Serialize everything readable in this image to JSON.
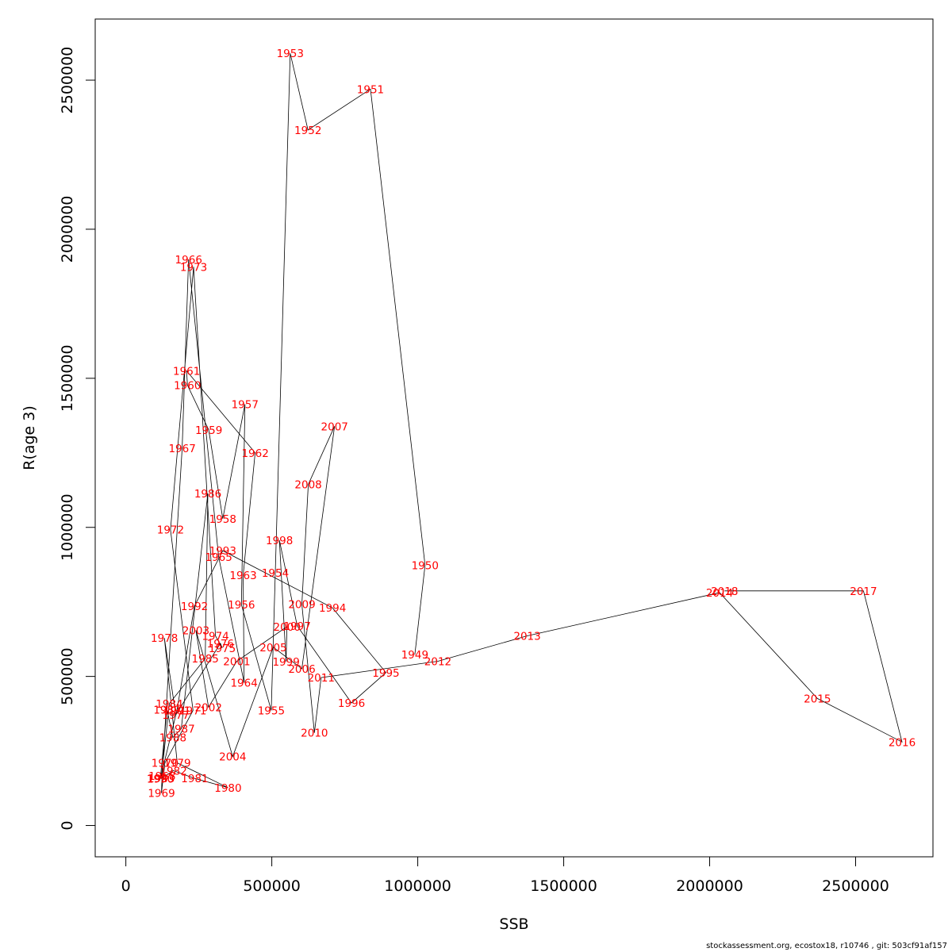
{
  "chart_data": {
    "type": "line",
    "title": "",
    "xlabel": "SSB",
    "ylabel": "R(age 3)",
    "xlim": [
      -105000,
      2765000
    ],
    "ylim": [
      -105000,
      2705000
    ],
    "xticks": [
      0,
      500000,
      1000000,
      1500000,
      2000000,
      2500000
    ],
    "yticks": [
      0,
      500000,
      1000000,
      1500000,
      2000000,
      2500000
    ],
    "xtick_labels": [
      "0",
      "500000",
      "1000000",
      "1500000",
      "2000000",
      "2500000"
    ],
    "ytick_labels": [
      "0",
      "500000",
      "1000000",
      "1500000",
      "2000000",
      "2500000"
    ],
    "grid": false,
    "line_color": "#000000",
    "label_color": "#ff0000",
    "series": [
      {
        "points": [
          {
            "year": "1949",
            "x": 990000,
            "y": 573000
          },
          {
            "year": "1950",
            "x": 1025000,
            "y": 873000
          },
          {
            "year": "1951",
            "x": 838000,
            "y": 2470000
          },
          {
            "year": "1952",
            "x": 624000,
            "y": 2333000
          },
          {
            "year": "1953",
            "x": 563000,
            "y": 2590000
          },
          {
            "year": "1954",
            "x": 512000,
            "y": 847000
          },
          {
            "year": "1955",
            "x": 498000,
            "y": 386000
          },
          {
            "year": "1956",
            "x": 396000,
            "y": 741000
          },
          {
            "year": "1957",
            "x": 408000,
            "y": 1413000
          },
          {
            "year": "1958",
            "x": 332000,
            "y": 1029000
          },
          {
            "year": "1959",
            "x": 284000,
            "y": 1327000
          },
          {
            "year": "1960",
            "x": 211000,
            "y": 1477000
          },
          {
            "year": "1961",
            "x": 208000,
            "y": 1525000
          },
          {
            "year": "1962",
            "x": 443000,
            "y": 1250000
          },
          {
            "year": "1963",
            "x": 402000,
            "y": 839000
          },
          {
            "year": "1964",
            "x": 405000,
            "y": 479000
          },
          {
            "year": "1965",
            "x": 318000,
            "y": 901000
          },
          {
            "year": "1966",
            "x": 215000,
            "y": 1899000
          },
          {
            "year": "1967",
            "x": 193000,
            "y": 1265000
          },
          {
            "year": "1968",
            "x": 124000,
            "y": 167000
          },
          {
            "year": "1969",
            "x": 122000,
            "y": 109000
          },
          {
            "year": "1970",
            "x": 134000,
            "y": 210000
          },
          {
            "year": "1971",
            "x": 230000,
            "y": 386000
          },
          {
            "year": "1972",
            "x": 153000,
            "y": 992000
          },
          {
            "year": "1973",
            "x": 232000,
            "y": 1874000
          },
          {
            "year": "1974",
            "x": 307000,
            "y": 636000
          },
          {
            "year": "1975",
            "x": 330000,
            "y": 595000
          },
          {
            "year": "1976",
            "x": 324000,
            "y": 611000
          },
          {
            "year": "1977",
            "x": 171000,
            "y": 371000
          },
          {
            "year": "1978",
            "x": 132000,
            "y": 629000
          },
          {
            "year": "1979",
            "x": 176000,
            "y": 210000
          },
          {
            "year": "1980",
            "x": 350000,
            "y": 127000
          },
          {
            "year": "1981",
            "x": 236000,
            "y": 158000
          },
          {
            "year": "1982",
            "x": 163000,
            "y": 184000
          },
          {
            "year": "1983",
            "x": 121000,
            "y": 158000
          },
          {
            "year": "1984",
            "x": 149000,
            "y": 409000
          },
          {
            "year": "1985",
            "x": 272000,
            "y": 560000
          },
          {
            "year": "1986",
            "x": 281000,
            "y": 1114000
          },
          {
            "year": "1987",
            "x": 190000,
            "y": 325000
          },
          {
            "year": "1988",
            "x": 161000,
            "y": 295000
          },
          {
            "year": "1989",
            "x": 141000,
            "y": 389000
          },
          {
            "year": "1990",
            "x": 118000,
            "y": 157000
          },
          {
            "year": "1991",
            "x": 175000,
            "y": 386000
          },
          {
            "year": "1992",
            "x": 235000,
            "y": 736000
          },
          {
            "year": "1993",
            "x": 332000,
            "y": 922000
          },
          {
            "year": "1994",
            "x": 708000,
            "y": 730000
          },
          {
            "year": "1995",
            "x": 891000,
            "y": 513000
          },
          {
            "year": "1996",
            "x": 773000,
            "y": 411000
          },
          {
            "year": "1997",
            "x": 587000,
            "y": 670000
          },
          {
            "year": "1998",
            "x": 526000,
            "y": 957000
          },
          {
            "year": "1999",
            "x": 549000,
            "y": 550000
          },
          {
            "year": "2000",
            "x": 552000,
            "y": 667000
          },
          {
            "year": "2001",
            "x": 380000,
            "y": 551000
          },
          {
            "year": "2002",
            "x": 283000,
            "y": 397000
          },
          {
            "year": "2003",
            "x": 240000,
            "y": 655000
          },
          {
            "year": "2004",
            "x": 366000,
            "y": 231000
          },
          {
            "year": "2005",
            "x": 505000,
            "y": 598000
          },
          {
            "year": "2006",
            "x": 603000,
            "y": 526000
          },
          {
            "year": "2007",
            "x": 715000,
            "y": 1339000
          },
          {
            "year": "2008",
            "x": 625000,
            "y": 1144000
          },
          {
            "year": "2009",
            "x": 603000,
            "y": 742000
          },
          {
            "year": "2010",
            "x": 646000,
            "y": 311000
          },
          {
            "year": "2011",
            "x": 669000,
            "y": 496000
          },
          {
            "year": "2012",
            "x": 1069000,
            "y": 551000
          },
          {
            "year": "2013",
            "x": 1375000,
            "y": 636000
          },
          {
            "year": "2014",
            "x": 2034000,
            "y": 781000
          },
          {
            "year": "2015",
            "x": 2369000,
            "y": 426000
          },
          {
            "year": "2016",
            "x": 2659000,
            "y": 280000
          },
          {
            "year": "2017",
            "x": 2527000,
            "y": 787000
          },
          {
            "year": "2018",
            "x": 2051000,
            "y": 787000
          }
        ]
      }
    ]
  },
  "footer": "stockassessment.org, ecostox18, r10746 , git: 503cf91af157"
}
